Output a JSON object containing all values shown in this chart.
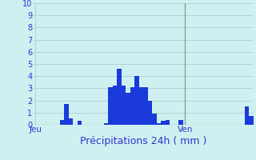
{
  "values": [
    0,
    0,
    0,
    0,
    0,
    0,
    0.4,
    1.7,
    0.5,
    0,
    0.3,
    0,
    0,
    0,
    0,
    0,
    0.1,
    3.1,
    3.2,
    4.6,
    3.2,
    2.6,
    3.1,
    4.0,
    3.1,
    3.1,
    2.0,
    0.9,
    0.1,
    0.3,
    0.4,
    0,
    0,
    0.4,
    0,
    0,
    0,
    0,
    0,
    0,
    0,
    0,
    0,
    0,
    0,
    0,
    0,
    0,
    1.5,
    0.7
  ],
  "n_bars": 50,
  "bar_color": "#1a3adb",
  "background_color": "#cff0f0",
  "grid_color": "#a8c8c8",
  "axis_label_color": "#3333cc",
  "xlabel": "Précipitations 24h ( mm )",
  "xlabel_color": "#3333cc",
  "xlabel_fontsize": 9,
  "ylim": [
    0,
    10
  ],
  "yticks": [
    0,
    1,
    2,
    3,
    4,
    5,
    6,
    7,
    8,
    9,
    10
  ],
  "xtick_labels": [
    "Jeu",
    "Ven"
  ],
  "xtick_positions": [
    0,
    34
  ],
  "vline_color": "#888888",
  "vline_pos": 34
}
